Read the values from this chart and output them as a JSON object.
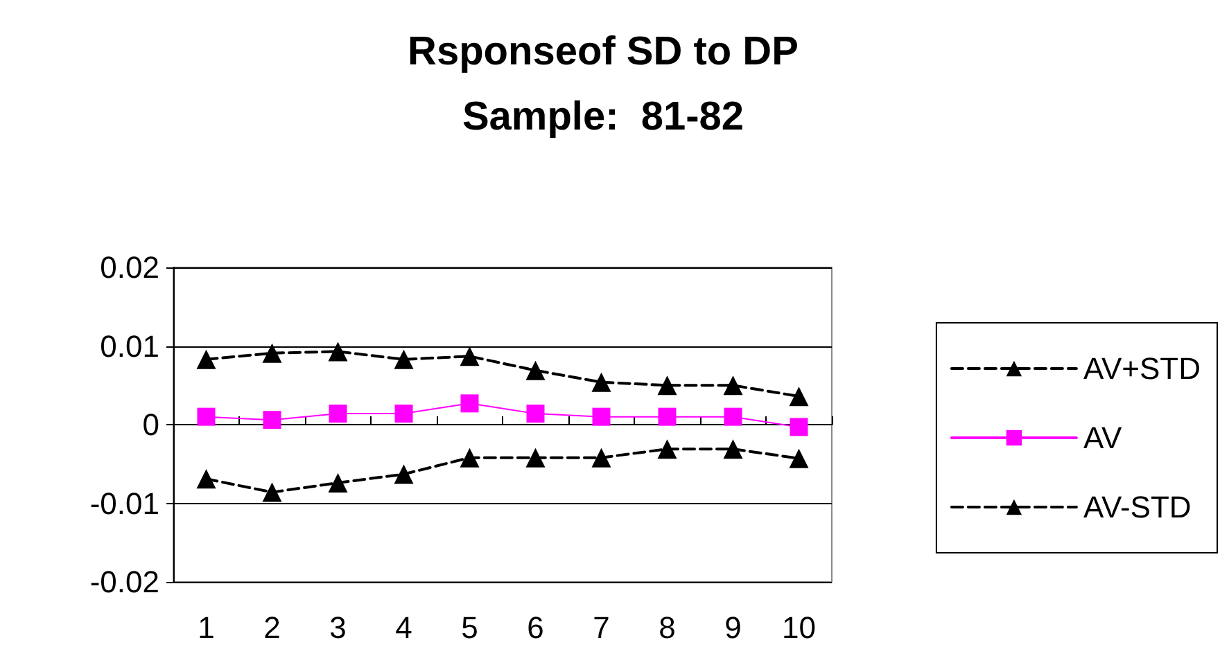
{
  "chart_data": {
    "type": "line",
    "title": "Rsponseof SD to DP",
    "subtitle": "Sample:  81-82",
    "categories": [
      "1",
      "2",
      "3",
      "4",
      "5",
      "6",
      "7",
      "8",
      "9",
      "10"
    ],
    "series": [
      {
        "name": "AV+STD",
        "color": "#000000",
        "marker": "triangle",
        "line_style": "dashed",
        "values": [
          0.0083,
          0.0091,
          0.0093,
          0.0083,
          0.0087,
          0.0069,
          0.0054,
          0.005,
          0.005,
          0.0036
        ]
      },
      {
        "name": "AV",
        "color": "#ff00ff",
        "marker": "square",
        "line_style": "solid",
        "values": [
          0.001,
          0.0006,
          0.0014,
          0.0014,
          0.0027,
          0.0014,
          0.001,
          0.001,
          0.001,
          -0.0003
        ]
      },
      {
        "name": "AV-STD",
        "color": "#000000",
        "marker": "triangle",
        "line_style": "dashed",
        "values": [
          -0.0069,
          -0.0086,
          -0.0074,
          -0.0063,
          -0.0042,
          -0.0042,
          -0.0042,
          -0.0031,
          -0.0031,
          -0.0043
        ]
      }
    ],
    "ylim": [
      -0.02,
      0.02
    ],
    "yticks": [
      -0.02,
      -0.01,
      0,
      0.01,
      0.02
    ],
    "grid": "y",
    "legend": "right"
  }
}
